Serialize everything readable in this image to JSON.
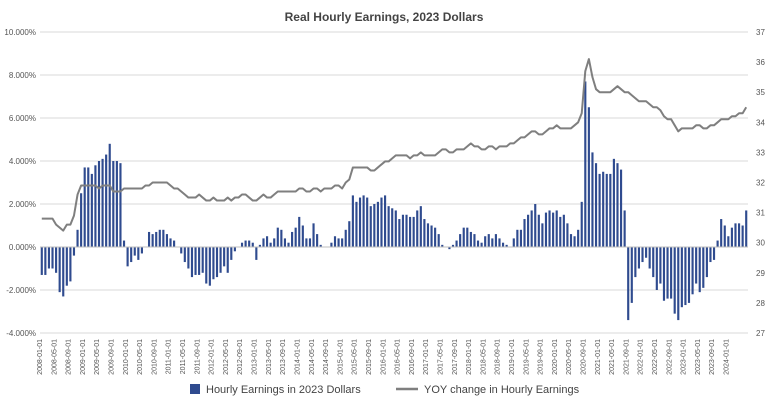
{
  "chart_data": {
    "type": "bar+line",
    "title": "Real Hourly Earnings, 2023 Dollars",
    "left_axis": {
      "ticks": [
        "-4.000%",
        "-2.000%",
        "0.000%",
        "2.000%",
        "4.000%",
        "6.000%",
        "8.000%",
        "10.000%"
      ],
      "range": [
        -4,
        10
      ]
    },
    "right_axis": {
      "ticks": [
        "27",
        "28",
        "29",
        "30",
        "31",
        "32",
        "33",
        "34",
        "35",
        "36",
        "37"
      ],
      "range": [
        27,
        37
      ]
    },
    "x_labels": [
      "2008-01-01",
      "2008-05-01",
      "2008-09-01",
      "2009-01-01",
      "2009-05-01",
      "2009-09-01",
      "2010-01-01",
      "2010-05-01",
      "2010-09-01",
      "2011-01-01",
      "2011-05-01",
      "2011-09-01",
      "2012-01-01",
      "2012-05-01",
      "2012-09-01",
      "2013-01-01",
      "2013-05-01",
      "2013-09-01",
      "2014-01-01",
      "2014-05-01",
      "2014-09-01",
      "2015-01-01",
      "2015-05-01",
      "2015-09-01",
      "2016-01-01",
      "2016-05-01",
      "2016-09-01",
      "2017-01-01",
      "2017-05-01",
      "2017-09-01",
      "2018-01-01",
      "2018-05-01",
      "2018-09-01",
      "2019-01-01",
      "2019-05-01",
      "2019-09-01",
      "2020-01-01",
      "2020-05-01",
      "2020-09-01",
      "2021-01-01",
      "2021-05-01",
      "2021-09-01",
      "2022-01-01",
      "2022-05-01",
      "2022-09-01",
      "2023-01-01",
      "2023-05-01",
      "2023-09-01",
      "2024-01-01"
    ],
    "start_month": "2008-01",
    "series": [
      {
        "name": "Hourly Earnings in 2023 Dollars",
        "axis": "left",
        "kind": "bar",
        "color": "#2f4b8f",
        "values": [
          -1.3,
          -1.3,
          -1.0,
          -1.0,
          -1.2,
          -2.1,
          -2.3,
          -1.8,
          -1.6,
          -0.4,
          0.8,
          2.5,
          3.7,
          3.7,
          3.4,
          3.8,
          4.0,
          4.1,
          4.3,
          4.8,
          4.0,
          4.0,
          3.9,
          0.3,
          -0.9,
          -0.7,
          -0.4,
          -0.6,
          -0.3,
          0.0,
          0.7,
          0.6,
          0.7,
          0.8,
          0.8,
          0.6,
          0.4,
          0.3,
          0.0,
          -0.3,
          -0.7,
          -1.0,
          -1.4,
          -1.3,
          -1.3,
          -1.2,
          -1.7,
          -1.8,
          -1.5,
          -1.4,
          -1.2,
          -0.9,
          -1.2,
          -0.6,
          -0.2,
          0.0,
          0.2,
          0.3,
          0.3,
          0.2,
          -0.6,
          0.1,
          0.4,
          0.5,
          0.2,
          0.4,
          0.9,
          0.8,
          0.4,
          0.2,
          0.7,
          0.9,
          1.4,
          1.0,
          0.4,
          0.4,
          1.1,
          0.6,
          0.1,
          0.0,
          0.0,
          0.2,
          0.5,
          0.4,
          0.4,
          0.8,
          1.2,
          2.4,
          2.1,
          2.3,
          2.4,
          2.3,
          1.9,
          2.0,
          2.1,
          2.3,
          2.4,
          1.9,
          1.8,
          1.7,
          1.3,
          1.5,
          1.5,
          1.4,
          1.4,
          1.7,
          1.9,
          1.3,
          1.1,
          1.0,
          0.9,
          0.6,
          0.1,
          0.0,
          -0.1,
          0.1,
          0.3,
          0.6,
          0.9,
          0.9,
          0.7,
          0.6,
          0.3,
          0.2,
          0.5,
          0.6,
          0.4,
          0.6,
          0.4,
          0.2,
          0.1,
          0.0,
          0.4,
          0.8,
          0.8,
          1.3,
          1.5,
          1.7,
          2.0,
          1.5,
          1.1,
          1.6,
          1.7,
          1.6,
          1.7,
          1.4,
          1.5,
          1.1,
          0.6,
          0.5,
          0.8,
          2.1,
          7.7,
          6.5,
          4.4,
          3.9,
          3.4,
          3.5,
          3.4,
          3.4,
          4.1,
          3.9,
          3.6,
          1.7,
          -3.4,
          -2.6,
          -1.4,
          -1.0,
          -0.7,
          -0.5,
          -1.0,
          -1.4,
          -2.0,
          -1.7,
          -2.5,
          -2.4,
          -2.4,
          -3.1,
          -3.4,
          -2.8,
          -2.7,
          -2.6,
          -2.2,
          -1.7,
          -2.1,
          -1.9,
          -1.4,
          -0.7,
          -0.6,
          0.3,
          1.3,
          1.0,
          0.5,
          0.9,
          1.1,
          1.1,
          1.0,
          1.7
        ]
      },
      {
        "name": "YOY change in Hourly Earnings",
        "axis": "right",
        "kind": "line",
        "color": "#7f7f7f",
        "values": [
          30.8,
          30.8,
          30.8,
          30.8,
          30.6,
          30.5,
          30.4,
          30.6,
          30.6,
          30.9,
          31.6,
          31.9,
          31.9,
          31.9,
          31.9,
          31.9,
          31.8,
          31.9,
          31.9,
          31.9,
          31.7,
          31.7,
          31.7,
          31.8,
          31.8,
          31.8,
          31.8,
          31.8,
          31.8,
          31.9,
          31.9,
          32.0,
          32.0,
          32.0,
          32.0,
          32.0,
          31.9,
          31.8,
          31.8,
          31.7,
          31.6,
          31.5,
          31.5,
          31.5,
          31.6,
          31.5,
          31.4,
          31.4,
          31.5,
          31.4,
          31.4,
          31.4,
          31.5,
          31.4,
          31.5,
          31.5,
          31.6,
          31.6,
          31.5,
          31.4,
          31.4,
          31.5,
          31.6,
          31.5,
          31.5,
          31.6,
          31.7,
          31.7,
          31.7,
          31.7,
          31.7,
          31.7,
          31.8,
          31.8,
          31.7,
          31.7,
          31.8,
          31.8,
          31.7,
          31.8,
          31.8,
          31.8,
          31.9,
          31.9,
          31.8,
          32.0,
          32.1,
          32.5,
          32.5,
          32.5,
          32.5,
          32.5,
          32.4,
          32.4,
          32.5,
          32.6,
          32.7,
          32.7,
          32.8,
          32.9,
          32.9,
          32.9,
          32.9,
          32.8,
          32.9,
          32.9,
          33.0,
          32.9,
          32.9,
          32.9,
          32.9,
          33.0,
          33.1,
          33.1,
          33.0,
          33.0,
          33.1,
          33.1,
          33.1,
          33.2,
          33.3,
          33.2,
          33.2,
          33.1,
          33.1,
          33.2,
          33.2,
          33.1,
          33.2,
          33.2,
          33.2,
          33.3,
          33.3,
          33.4,
          33.5,
          33.5,
          33.6,
          33.7,
          33.7,
          33.6,
          33.6,
          33.7,
          33.8,
          33.8,
          33.9,
          33.8,
          33.8,
          33.8,
          33.8,
          33.9,
          34.0,
          34.3,
          35.7,
          36.1,
          35.5,
          35.1,
          35.0,
          35.0,
          35.0,
          35.0,
          35.1,
          35.2,
          35.1,
          35.0,
          35.0,
          34.9,
          34.8,
          34.7,
          34.7,
          34.7,
          34.6,
          34.5,
          34.5,
          34.4,
          34.2,
          34.1,
          34.1,
          33.9,
          33.7,
          33.8,
          33.8,
          33.8,
          33.8,
          33.9,
          33.9,
          33.8,
          33.8,
          33.9,
          33.9,
          34.0,
          34.1,
          34.1,
          34.1,
          34.2,
          34.2,
          34.3,
          34.3,
          34.5
        ]
      }
    ],
    "legend_position": "bottom",
    "grid": true
  }
}
